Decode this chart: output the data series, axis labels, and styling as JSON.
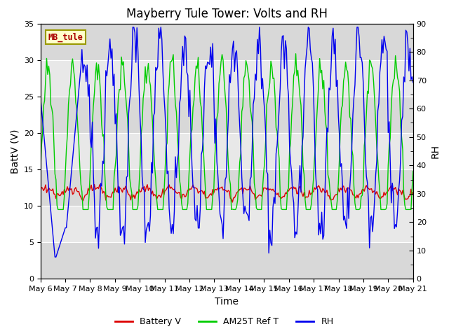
{
  "title": "Mayberry Tule Tower: Volts and RH",
  "xlabel": "Time",
  "ylabel_left": "BattV (V)",
  "ylabel_right": "RH",
  "ylim_left": [
    0,
    35
  ],
  "ylim_right": [
    0,
    90
  ],
  "yticks_left": [
    0,
    5,
    10,
    15,
    20,
    25,
    30,
    35
  ],
  "yticks_right": [
    0,
    10,
    20,
    30,
    40,
    50,
    60,
    70,
    80,
    90
  ],
  "xtick_labels": [
    "May 6",
    "May 7",
    "May 8",
    "May 9",
    "May 10",
    "May 11",
    "May 12",
    "May 13",
    "May 14",
    "May 15",
    "May 16",
    "May 17",
    "May 18",
    "May 19",
    "May 20",
    "May 21"
  ],
  "label_box": "MB_tule",
  "legend_labels": [
    "Battery V",
    "AM25T Ref T",
    "RH"
  ],
  "legend_colors": [
    "#dd0000",
    "#00cc00",
    "#0000ee"
  ],
  "bg_band_colors": [
    "#d8d8d8",
    "#e8e8e8"
  ],
  "bg_outer_color": "#ffffff",
  "grid_color": "#ffffff",
  "title_fontsize": 12,
  "axis_fontsize": 10,
  "tick_fontsize": 8,
  "line_width": 1.0
}
